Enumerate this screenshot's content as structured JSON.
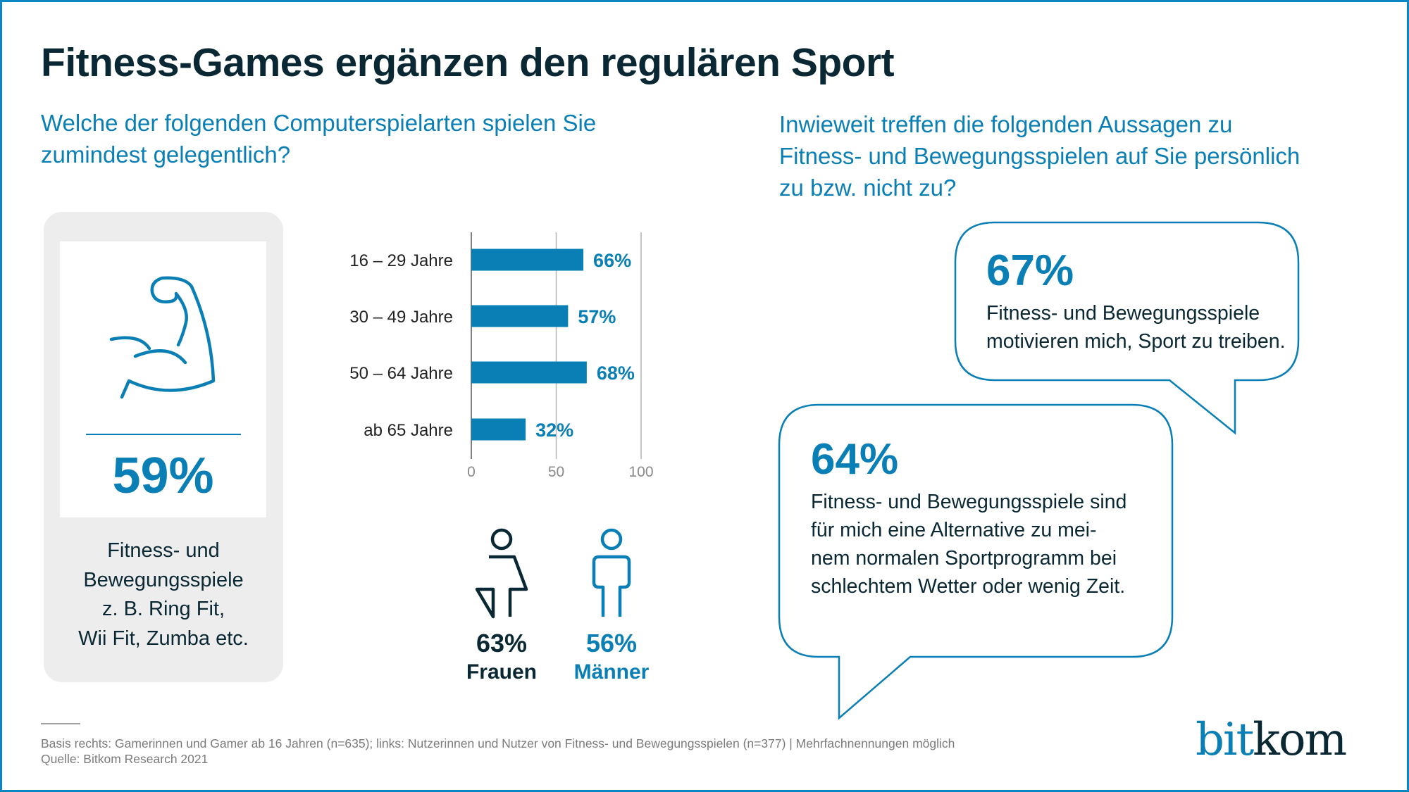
{
  "header": {
    "title": "Fitness-Games ergänzen den regulären Sport"
  },
  "left_question": {
    "lines": [
      "Welche der folgenden Computerspielarten spielen Sie",
      "zumindest gelegentlich?"
    ]
  },
  "right_question": {
    "lines": [
      "Inwieweit treffen die folgenden Aussagen zu",
      "Fitness- und Bewegungsspielen auf Sie persönlich",
      "zu bzw. nicht zu?"
    ]
  },
  "card": {
    "icon": "flexed-biceps-icon",
    "value": "59%",
    "lines": [
      "Fitness- und",
      "Bewegungsspiele",
      "z. B. Ring Fit,",
      "Wii Fit, Zumba etc."
    ]
  },
  "gender": {
    "female": {
      "icon": "female-person-icon",
      "value": "63%",
      "label": "Frauen"
    },
    "male": {
      "icon": "male-person-icon",
      "value": "56%",
      "label": "Männer"
    }
  },
  "bubbles": [
    {
      "value": "67%",
      "lines": [
        "Fitness- und Bewegungsspiele",
        "motivieren mich, Sport zu treiben."
      ]
    },
    {
      "value": "64%",
      "lines": [
        "Fitness- und Bewegungsspiele sind",
        "für mich eine Alternative zu mei-",
        "nem normalen Sportprogramm bei",
        "schlechtem Wetter oder wenig Zeit."
      ]
    }
  ],
  "footer": {
    "lines": [
      "Basis rechts: Gamerinnen und Gamer ab 16 Jahren (n=635); links: Nutzerinnen und Nutzer von Fitness- und Bewegungsspielen (n=377) | Mehrfachnennungen möglich",
      "Quelle: Bitkom Research 2021"
    ],
    "logo_part1": "bit",
    "logo_part2": "kom"
  },
  "colors": {
    "accent": "#0a7fb5",
    "dark": "#0a2833",
    "card_bg": "#ededed",
    "gridline": "#b4b4b4"
  },
  "chart_data": {
    "type": "bar",
    "orientation": "horizontal",
    "title": "",
    "categories": [
      "16 – 29 Jahre",
      "30 – 49 Jahre",
      "50 – 64 Jahre",
      "ab 65 Jahre"
    ],
    "values": [
      66,
      57,
      68,
      32
    ],
    "value_labels": [
      "66%",
      "57%",
      "68%",
      "32%"
    ],
    "xlabel": "",
    "ylabel": "",
    "xlim": [
      0,
      100
    ],
    "xticks": [
      0,
      50,
      100
    ],
    "grid": true,
    "legend": "none"
  }
}
